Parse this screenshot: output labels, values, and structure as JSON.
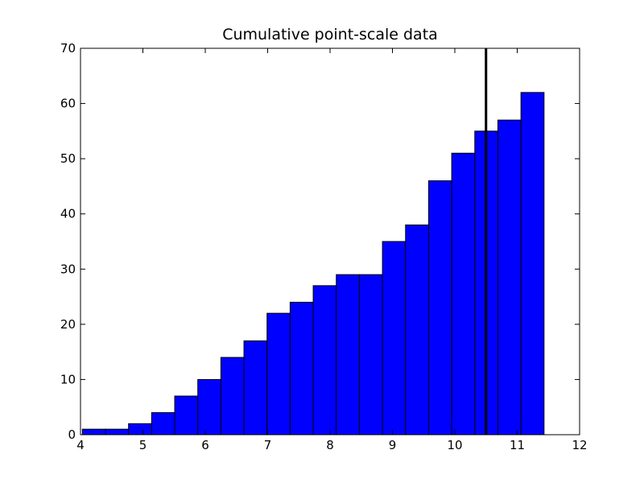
{
  "chart_data": {
    "type": "bar",
    "title": "Cumulative point-scale data",
    "xlabel": "",
    "ylabel": "",
    "xlim": [
      4,
      12
    ],
    "ylim": [
      0,
      70
    ],
    "x_ticks": [
      4,
      5,
      6,
      7,
      8,
      9,
      10,
      11,
      12
    ],
    "y_ticks": [
      0,
      10,
      20,
      30,
      40,
      50,
      60,
      70
    ],
    "bins": [
      {
        "x0": 4.03,
        "x1": 4.4,
        "value": 1
      },
      {
        "x0": 4.4,
        "x1": 4.77,
        "value": 1
      },
      {
        "x0": 4.77,
        "x1": 5.14,
        "value": 2
      },
      {
        "x0": 5.14,
        "x1": 5.51,
        "value": 4
      },
      {
        "x0": 5.51,
        "x1": 5.88,
        "value": 7
      },
      {
        "x0": 5.88,
        "x1": 6.25,
        "value": 10
      },
      {
        "x0": 6.25,
        "x1": 6.62,
        "value": 14
      },
      {
        "x0": 6.62,
        "x1": 6.99,
        "value": 17
      },
      {
        "x0": 6.99,
        "x1": 7.36,
        "value": 22
      },
      {
        "x0": 7.36,
        "x1": 7.73,
        "value": 24
      },
      {
        "x0": 7.73,
        "x1": 8.1,
        "value": 27
      },
      {
        "x0": 8.1,
        "x1": 8.47,
        "value": 29
      },
      {
        "x0": 8.47,
        "x1": 8.84,
        "value": 29
      },
      {
        "x0": 8.84,
        "x1": 9.21,
        "value": 35
      },
      {
        "x0": 9.21,
        "x1": 9.58,
        "value": 38
      },
      {
        "x0": 9.58,
        "x1": 9.95,
        "value": 46
      },
      {
        "x0": 9.95,
        "x1": 10.32,
        "value": 51
      },
      {
        "x0": 10.32,
        "x1": 10.69,
        "value": 55
      },
      {
        "x0": 10.69,
        "x1": 11.06,
        "value": 57
      },
      {
        "x0": 11.06,
        "x1": 11.43,
        "value": 62
      }
    ],
    "vline_x": 10.5,
    "bar_color": "#0000ff",
    "vline_color": "#000000",
    "grid": false,
    "legend": "none"
  }
}
